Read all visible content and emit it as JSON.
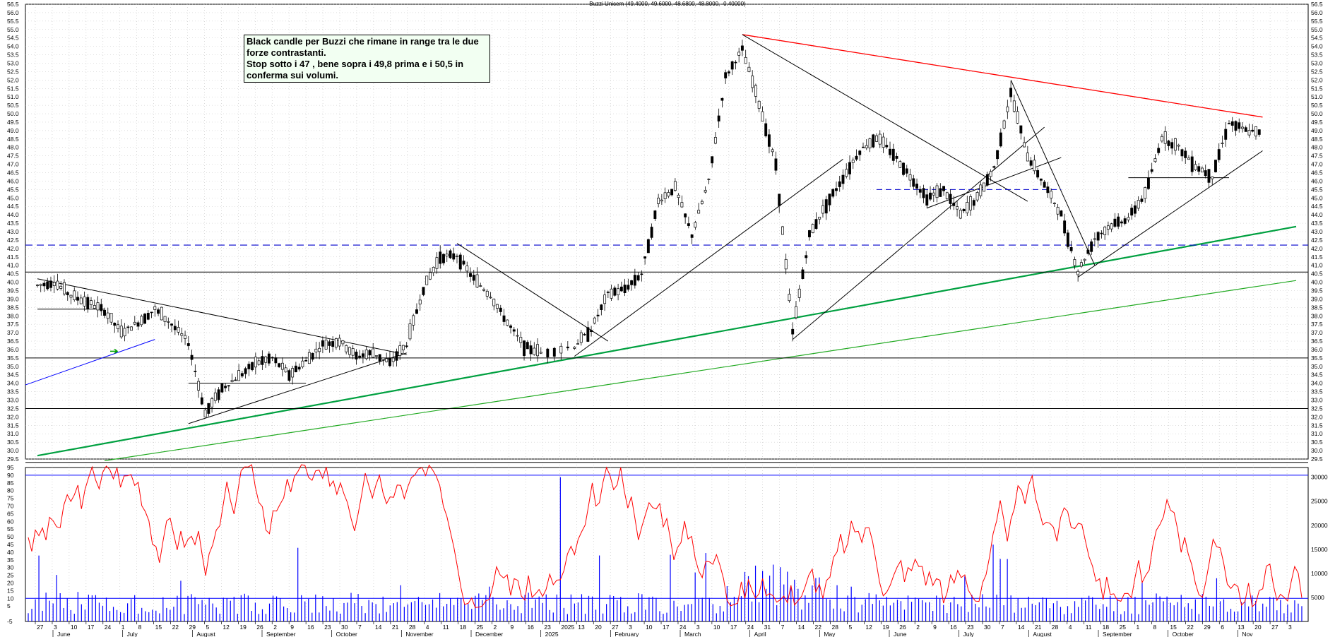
{
  "chart_data": [
    {
      "type": "candlestick",
      "title": "Buzzi Unicem (49.4000, 49.6000, 48.6800, 48.8000, -0.40000)",
      "y_ticks": [
        "56.5",
        "56.0",
        "55.5",
        "55.0",
        "54.5",
        "54.0",
        "53.5",
        "53.0",
        "52.5",
        "52.0",
        "51.5",
        "51.0",
        "50.5",
        "50.0",
        "49.5",
        "49.0",
        "48.5",
        "48.0",
        "47.5",
        "47.0",
        "46.5",
        "46.0",
        "45.5",
        "45.0",
        "44.5",
        "44.0",
        "43.5",
        "43.0",
        "42.5",
        "42.0",
        "41.5",
        "41.0",
        "40.5",
        "40.0",
        "39.5",
        "39.0",
        "38.5",
        "38.0",
        "37.5",
        "37.0",
        "36.5",
        "36.0",
        "35.5",
        "35.0",
        "34.5",
        "34.0",
        "33.5",
        "33.0",
        "32.5",
        "32.0",
        "31.5",
        "31.0",
        "30.5",
        "30.0",
        "29.5"
      ],
      "ylim": [
        29.5,
        56.5
      ],
      "price_path": [
        {
          "d": "2024-05-27",
          "c": 39.8
        },
        {
          "d": "2024-06-03",
          "c": 40.0
        },
        {
          "d": "2024-06-10",
          "c": 39.2
        },
        {
          "d": "2024-06-17",
          "c": 38.8
        },
        {
          "d": "2024-06-24",
          "c": 38.3
        },
        {
          "d": "2024-07-01",
          "c": 37.0
        },
        {
          "d": "2024-07-08",
          "c": 37.6
        },
        {
          "d": "2024-07-15",
          "c": 38.4
        },
        {
          "d": "2024-07-22",
          "c": 37.5
        },
        {
          "d": "2024-07-29",
          "c": 36.4
        },
        {
          "d": "2024-08-05",
          "c": 32.2
        },
        {
          "d": "2024-08-12",
          "c": 33.7
        },
        {
          "d": "2024-08-19",
          "c": 34.4
        },
        {
          "d": "2024-08-26",
          "c": 35.2
        },
        {
          "d": "2024-09-02",
          "c": 35.5
        },
        {
          "d": "2024-09-09",
          "c": 34.5
        },
        {
          "d": "2024-09-16",
          "c": 35.3
        },
        {
          "d": "2024-09-23",
          "c": 36.3
        },
        {
          "d": "2024-09-30",
          "c": 36.5
        },
        {
          "d": "2024-10-07",
          "c": 35.6
        },
        {
          "d": "2024-10-14",
          "c": 35.8
        },
        {
          "d": "2024-10-21",
          "c": 35.2
        },
        {
          "d": "2024-10-28",
          "c": 36.3
        },
        {
          "d": "2024-11-04",
          "c": 39.6
        },
        {
          "d": "2024-11-11",
          "c": 41.5
        },
        {
          "d": "2024-11-18",
          "c": 41.6
        },
        {
          "d": "2024-11-25",
          "c": 40.2
        },
        {
          "d": "2024-12-02",
          "c": 39.2
        },
        {
          "d": "2024-12-09",
          "c": 37.6
        },
        {
          "d": "2024-12-16",
          "c": 36.2
        },
        {
          "d": "2024-12-23",
          "c": 35.8
        },
        {
          "d": "2025-01-06",
          "c": 36.2
        },
        {
          "d": "2025-01-13",
          "c": 37.2
        },
        {
          "d": "2025-01-20",
          "c": 39.3
        },
        {
          "d": "2025-01-27",
          "c": 39.6
        },
        {
          "d": "2025-02-03",
          "c": 40.5
        },
        {
          "d": "2025-02-10",
          "c": 44.8
        },
        {
          "d": "2025-02-17",
          "c": 45.6
        },
        {
          "d": "2025-02-24",
          "c": 42.8
        },
        {
          "d": "2025-03-03",
          "c": 46.0
        },
        {
          "d": "2025-03-10",
          "c": 52.2
        },
        {
          "d": "2025-03-17",
          "c": 53.8
        },
        {
          "d": "2025-03-24",
          "c": 50.6
        },
        {
          "d": "2025-03-31",
          "c": 47.0
        },
        {
          "d": "2025-04-07",
          "c": 37.0
        },
        {
          "d": "2025-04-14",
          "c": 42.8
        },
        {
          "d": "2025-04-21",
          "c": 44.6
        },
        {
          "d": "2025-04-28",
          "c": 46.2
        },
        {
          "d": "2025-05-05",
          "c": 47.8
        },
        {
          "d": "2025-05-12",
          "c": 48.6
        },
        {
          "d": "2025-05-19",
          "c": 47.6
        },
        {
          "d": "2025-05-26",
          "c": 46.3
        },
        {
          "d": "2025-06-02",
          "c": 45.0
        },
        {
          "d": "2025-06-09",
          "c": 45.5
        },
        {
          "d": "2025-06-16",
          "c": 44.0
        },
        {
          "d": "2025-06-23",
          "c": 45.0
        },
        {
          "d": "2025-06-30",
          "c": 46.8
        },
        {
          "d": "2025-07-07",
          "c": 51.2
        },
        {
          "d": "2025-07-14",
          "c": 47.5
        },
        {
          "d": "2025-07-21",
          "c": 45.8
        },
        {
          "d": "2025-07-28",
          "c": 44.0
        },
        {
          "d": "2025-08-04",
          "c": 40.6
        },
        {
          "d": "2025-08-11",
          "c": 42.6
        },
        {
          "d": "2025-08-18",
          "c": 43.4
        },
        {
          "d": "2025-08-25",
          "c": 43.8
        },
        {
          "d": "2025-09-01",
          "c": 45.2
        },
        {
          "d": "2025-09-08",
          "c": 48.6
        },
        {
          "d": "2025-09-15",
          "c": 48.0
        },
        {
          "d": "2025-09-22",
          "c": 46.9
        },
        {
          "d": "2025-09-29",
          "c": 46.3
        },
        {
          "d": "2025-10-06",
          "c": 49.5
        },
        {
          "d": "2025-10-13",
          "c": 49.0
        },
        {
          "d": "2025-10-20",
          "c": 48.8
        }
      ],
      "trendlines": [
        {
          "name": "red-resistance",
          "color": "#ff0000",
          "from": [
            "2025-03-17",
            54.7
          ],
          "to": [
            "2025-10-20",
            49.8
          ]
        },
        {
          "name": "green-support-main",
          "color": "#00a040",
          "from": [
            "2024-05-27",
            29.7
          ],
          "to": [
            "2025-11-03",
            43.3
          ]
        },
        {
          "name": "green-support-lower",
          "color": "#22aa22",
          "from": [
            "2024-06-24",
            29.4
          ],
          "to": [
            "2025-11-03",
            40.1
          ]
        },
        {
          "name": "horizontal-42.2-dashed",
          "color": "#0000cc",
          "level": 42.2
        },
        {
          "name": "horizontal-40.6",
          "color": "#000000",
          "level": 40.6
        },
        {
          "name": "horizontal-35.5",
          "color": "#000000",
          "level": 35.5
        },
        {
          "name": "horizontal-32.5",
          "color": "#000000",
          "level": 32.5
        },
        {
          "name": "horizontal-29.3",
          "color": "#000000",
          "level": 29.3
        }
      ]
    },
    {
      "type": "line",
      "name": "oscillator",
      "left_ticks": [
        "95",
        "90",
        "85",
        "80",
        "75",
        "70",
        "65",
        "60",
        "55",
        "50",
        "45",
        "40",
        "35",
        "30",
        "25",
        "20",
        "15",
        "10",
        "5",
        "-5"
      ],
      "right_ticks": [
        "30000",
        "25000",
        "20000",
        "15000",
        "10000",
        "5000"
      ],
      "ylim": [
        -5,
        95
      ],
      "levels": [
        90,
        10
      ]
    }
  ],
  "annotation": {
    "lines": [
      "Black candle per Buzzi che rimane in range tra le due",
      "forze contrastanti.",
      "Stop sotto i 47 , bene sopra i 49,8 prima e i 50,5 in",
      "conferma sui volumi."
    ]
  },
  "x_axis": {
    "days": [
      "27",
      "3",
      "10",
      "17",
      "24",
      "1",
      "8",
      "15",
      "22",
      "29",
      "5",
      "12",
      "19",
      "26",
      "2",
      "9",
      "16",
      "23",
      "30",
      "7",
      "14",
      "21",
      "28",
      "4",
      "11",
      "18",
      "25",
      "2",
      "9",
      "16",
      "23",
      "2025",
      "13",
      "20",
      "27",
      "3",
      "10",
      "17",
      "24",
      "3",
      "10",
      "17",
      "24",
      "31",
      "7",
      "14",
      "22",
      "28",
      "5",
      "12",
      "19",
      "26",
      "2",
      "9",
      "16",
      "23",
      "30",
      "7",
      "14",
      "21",
      "28",
      "4",
      "11",
      "18",
      "25",
      "1",
      "8",
      "15",
      "22",
      "29",
      "6",
      "13",
      "20",
      "27",
      "3"
    ],
    "months": [
      "June",
      "July",
      "August",
      "September",
      "October",
      "November",
      "December",
      "2025",
      "February",
      "March",
      "April",
      "May",
      "June",
      "July",
      "August",
      "September",
      "October",
      "Nov"
    ]
  },
  "colors": {
    "candle": "#000000",
    "resistance": "#ff0000",
    "support_green": "#00a040",
    "dashed_blue": "#0000cc",
    "oscillator": "#ff0000",
    "volume": "#0000ff",
    "grid": "#c0c0c0"
  },
  "icons": {
    "arrow": "green-right-arrow"
  }
}
